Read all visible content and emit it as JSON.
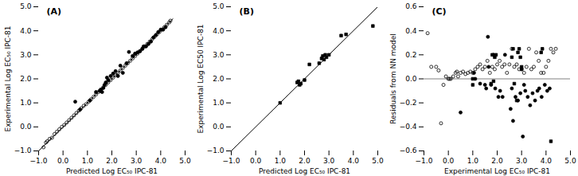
{
  "chart_data": [
    {
      "type": "scatter",
      "title": "(A)",
      "xlabel": "Predicted Log EC₅₀ IPC-81",
      "ylabel": "Experimental Log EC₅₀ IPC-81",
      "xlim": [
        -1.0,
        5.0
      ],
      "ylim": [
        -1.0,
        5.0
      ],
      "xticks": [
        {
          "value": -1.0,
          "label": "−1.0"
        },
        {
          "value": 0.0,
          "label": "0.0"
        },
        {
          "value": 1.0,
          "label": "1.0"
        },
        {
          "value": 2.0,
          "label": "2.0"
        },
        {
          "value": 3.0,
          "label": "3.0"
        },
        {
          "value": 4.0,
          "label": "4.0"
        },
        {
          "value": 5.0,
          "label": "5.0"
        }
      ],
      "yticks": [
        {
          "value": -1.0,
          "label": "−1.0"
        },
        {
          "value": 0.0,
          "label": "0.0"
        },
        {
          "value": 1.0,
          "label": "1.0"
        },
        {
          "value": 2.0,
          "label": "2.0"
        },
        {
          "value": 3.0,
          "label": "3.0"
        },
        {
          "value": 4.0,
          "label": "4.0"
        },
        {
          "value": 5.0,
          "label": "5.0"
        }
      ],
      "grid": false,
      "series": [
        {
          "type": "scatter",
          "marker": "open-circle",
          "color": "#000000",
          "x": [
            -0.8,
            -0.7,
            -0.65,
            -0.55,
            -0.45,
            -0.35,
            -0.25,
            -0.15,
            -0.05,
            0.05,
            0.15,
            0.25,
            0.35,
            0.45,
            0.55,
            0.65,
            0.75,
            0.85,
            0.95,
            1.05,
            1.15,
            1.25,
            1.35,
            1.45,
            1.55,
            1.65,
            1.75,
            1.85,
            1.95,
            2.05,
            2.15,
            2.25,
            2.35,
            2.45,
            2.55,
            2.65,
            2.75,
            2.85,
            2.95,
            3.05,
            3.15,
            3.25,
            3.35,
            3.45,
            3.55,
            3.65,
            3.75,
            3.85,
            3.95,
            4.05,
            4.15,
            4.25,
            4.35,
            4.4
          ],
          "values": [
            -0.85,
            -0.65,
            -0.6,
            -0.5,
            -0.45,
            -0.3,
            -0.2,
            -0.1,
            0.0,
            0.08,
            0.18,
            0.28,
            0.38,
            0.48,
            0.58,
            0.68,
            0.78,
            0.88,
            0.95,
            1.05,
            1.15,
            1.25,
            1.35,
            1.45,
            1.55,
            1.65,
            1.75,
            1.85,
            1.95,
            2.05,
            2.15,
            2.25,
            2.35,
            2.45,
            2.55,
            2.65,
            2.75,
            2.85,
            2.95,
            3.05,
            3.15,
            3.25,
            3.35,
            3.45,
            3.55,
            3.65,
            3.75,
            3.85,
            3.95,
            4.05,
            4.15,
            4.25,
            4.35,
            4.42
          ]
        },
        {
          "type": "scatter",
          "marker": "circle",
          "color": "#000000",
          "x": [
            0.5,
            0.7,
            1.1,
            1.35,
            1.5,
            1.55,
            1.6,
            1.65,
            1.7,
            1.75,
            1.8,
            1.85,
            1.95,
            2.05,
            2.15,
            2.25,
            2.35,
            2.45,
            2.6,
            2.7,
            2.85,
            2.95,
            3.05,
            3.15,
            3.25,
            3.3,
            3.4,
            3.5,
            3.6,
            3.7,
            3.8,
            3.9,
            4.0,
            4.1,
            4.2
          ],
          "values": [
            1.05,
            0.72,
            1.1,
            1.45,
            1.5,
            1.55,
            1.45,
            1.62,
            1.75,
            1.85,
            2.05,
            1.95,
            2.12,
            2.22,
            2.32,
            2.12,
            2.55,
            2.25,
            2.65,
            3.12,
            2.95,
            3.05,
            3.1,
            3.15,
            3.25,
            3.35,
            3.35,
            3.45,
            3.55,
            3.72,
            3.82,
            3.95,
            4.05,
            4.05,
            4.15
          ]
        },
        {
          "type": "line",
          "line_style": "solid",
          "color": "#000000",
          "x": [
            -1.0,
            4.5
          ],
          "values": [
            -1.0,
            4.5
          ]
        }
      ]
    },
    {
      "type": "scatter",
      "title": "(B)",
      "xlabel": "Predicted Log EC₅₀ IPC-81",
      "ylabel": "Experimental Log EC50 IPC-81",
      "xlim": [
        -1.0,
        5.0
      ],
      "ylim": [
        -1.0,
        5.0
      ],
      "xticks": [
        {
          "value": -1.0,
          "label": "−1.0"
        },
        {
          "value": 0.0,
          "label": "0.0"
        },
        {
          "value": 1.0,
          "label": "1.0"
        },
        {
          "value": 2.0,
          "label": "2.0"
        },
        {
          "value": 3.0,
          "label": "3.0"
        },
        {
          "value": 4.0,
          "label": "4.0"
        },
        {
          "value": 5.0,
          "label": "5.0"
        }
      ],
      "yticks": [
        {
          "value": -1.0,
          "label": "−1.0"
        },
        {
          "value": 0.0,
          "label": "0.0"
        },
        {
          "value": 1.0,
          "label": "1.0"
        },
        {
          "value": 2.0,
          "label": "2.0"
        },
        {
          "value": 3.0,
          "label": "3.0"
        },
        {
          "value": 4.0,
          "label": "4.0"
        },
        {
          "value": 5.0,
          "label": "5.0"
        }
      ],
      "grid": false,
      "series": [
        {
          "type": "scatter",
          "marker": "square",
          "color": "#000000",
          "x": [
            1.0,
            1.7,
            1.75,
            1.8,
            1.85,
            2.0,
            2.2,
            2.6,
            2.7,
            2.75,
            2.8,
            2.85,
            2.9,
            3.0,
            3.5,
            3.7,
            4.8
          ],
          "values": [
            1.0,
            1.85,
            1.9,
            1.75,
            1.8,
            1.95,
            2.6,
            2.65,
            2.85,
            2.95,
            2.8,
            3.0,
            2.9,
            3.0,
            3.8,
            3.85,
            4.2
          ]
        },
        {
          "type": "line",
          "line_style": "solid",
          "color": "#000000",
          "x": [
            -1.0,
            5.0
          ],
          "values": [
            -1.0,
            5.0
          ]
        }
      ]
    },
    {
      "type": "scatter",
      "title": "(C)",
      "xlabel": "Experimental Log EC₅₀ IPC-81",
      "ylabel": "Residuals from NN model",
      "xlim": [
        -1.0,
        5.0
      ],
      "ylim": [
        -0.6,
        0.6
      ],
      "xticks": [
        {
          "value": -1.0,
          "label": "−1.0"
        },
        {
          "value": 0.0,
          "label": "0.0"
        },
        {
          "value": 1.0,
          "label": "1.0"
        },
        {
          "value": 2.0,
          "label": "2.0"
        },
        {
          "value": 3.0,
          "label": "3.0"
        },
        {
          "value": 4.0,
          "label": "4.0"
        },
        {
          "value": 5.0,
          "label": "5.0"
        }
      ],
      "yticks": [
        {
          "value": -0.6,
          "label": "−0.6"
        },
        {
          "value": -0.4,
          "label": "−0.4"
        },
        {
          "value": -0.2,
          "label": "−0.2"
        },
        {
          "value": 0.0,
          "label": "0.0"
        },
        0.2,
        0.4,
        0.6
      ],
      "grid": false,
      "series": [
        {
          "type": "scatter",
          "marker": "open-circle",
          "color": "#000000",
          "x": [
            -0.85,
            -0.7,
            -0.5,
            -0.4,
            -0.3,
            -0.2,
            -0.1,
            0.0,
            0.05,
            0.1,
            0.2,
            0.3,
            0.35,
            0.4,
            0.5,
            0.6,
            0.7,
            0.8,
            0.9,
            1.0,
            1.1,
            1.2,
            1.3,
            1.4,
            1.5,
            1.6,
            1.7,
            1.8,
            1.9,
            2.0,
            2.1,
            2.2,
            2.3,
            2.4,
            2.5,
            2.6,
            2.7,
            2.8,
            2.9,
            3.0,
            3.1,
            3.2,
            3.3,
            3.4,
            3.5,
            3.6,
            3.7,
            3.8,
            3.9,
            4.0,
            4.1,
            4.2,
            4.3,
            4.4
          ],
          "values": [
            0.38,
            0.1,
            0.1,
            0.07,
            -0.37,
            -0.05,
            0.02,
            0.0,
            0.0,
            0.0,
            0.02,
            0.05,
            0.06,
            0.02,
            0.05,
            0.06,
            0.04,
            0.05,
            0.06,
            0.05,
            0.08,
            0.1,
            0.12,
            0.08,
            0.1,
            0.15,
            0.05,
            0.1,
            0.08,
            0.12,
            0.15,
            0.1,
            0.12,
            0.05,
            0.12,
            0.25,
            0.1,
            0.12,
            0.08,
            0.08,
            0.05,
            0.1,
            0.25,
            0.08,
            0.1,
            0.22,
            0.15,
            0.05,
            0.05,
            0.1,
            0.15,
            0.25,
            0.22,
            0.25
          ]
        },
        {
          "type": "scatter",
          "marker": "circle",
          "color": "#000000",
          "x": [
            1.05,
            1.1,
            1.3,
            1.5,
            1.55,
            1.62,
            1.75,
            1.85,
            1.92,
            2.05,
            2.12,
            2.22,
            2.32,
            2.55,
            2.65,
            2.75,
            2.85,
            2.95,
            3.05,
            3.1,
            3.15,
            3.25,
            3.35,
            3.45,
            3.55,
            3.65,
            3.72,
            3.82,
            3.95,
            4.05,
            4.15,
            0.5,
            1.65,
            2.6
          ],
          "values": [
            0.05,
            0.0,
            -0.04,
            -0.05,
            -0.08,
            0.35,
            -0.05,
            0.2,
            -0.08,
            -0.15,
            -0.1,
            -0.15,
            0.2,
            -0.25,
            -0.35,
            -0.15,
            -0.18,
            -0.12,
            -0.48,
            -0.05,
            -0.1,
            -0.15,
            -0.22,
            -0.12,
            -0.18,
            -0.1,
            -0.08,
            -0.15,
            -0.05,
            -0.1,
            -0.08,
            -0.28,
            0.1,
            -0.08
          ]
        },
        {
          "type": "scatter",
          "marker": "square",
          "color": "#000000",
          "x": [
            1.0,
            1.75,
            1.8,
            1.85,
            1.9,
            1.95,
            2.6,
            2.65,
            2.8,
            2.85,
            2.9,
            2.95,
            3.0,
            3.8,
            3.85,
            4.2,
            1.0,
            2.7,
            3.0
          ],
          "values": [
            0.0,
            -0.04,
            0.2,
            -0.02,
            0.18,
            0.2,
            0.18,
            0.25,
            -0.18,
            0.22,
            0.25,
            0.18,
            0.1,
            0.22,
            0.25,
            -0.52,
            -0.05,
            -0.04,
            0.08
          ]
        },
        {
          "type": "line",
          "line_style": "solid",
          "color": "gray",
          "x": [
            -1.0,
            5.0
          ],
          "values": [
            0.0,
            0.0
          ]
        }
      ]
    }
  ]
}
